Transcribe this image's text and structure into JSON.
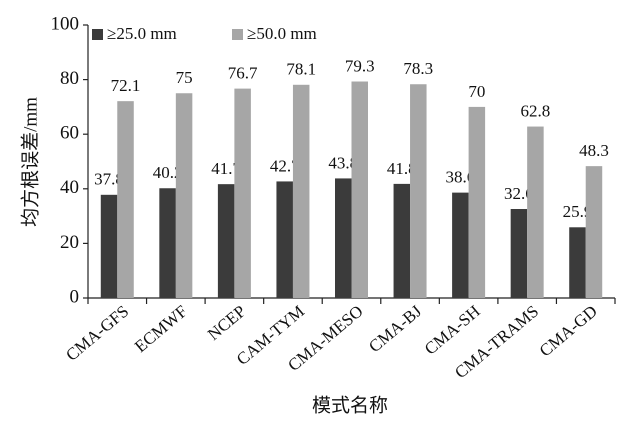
{
  "chart_data": {
    "type": "bar",
    "y_label": "均方根误差/mm",
    "x_label": "模式名称",
    "categories": [
      "CMA-GFS",
      "ECMWF",
      "NCEP",
      "CAM-TYM",
      "CMA-MESO",
      "CMA-BJ",
      "CMA-SH",
      "CMA-TRAMS",
      "CMA-GD"
    ],
    "series": [
      {
        "name": "≥25.0 mm",
        "color": "#3b3b3b",
        "values": [
          37.8,
          40.2,
          41.7,
          42.7,
          43.8,
          41.8,
          38.6,
          32.6,
          25.9
        ]
      },
      {
        "name": "≥50.0 mm",
        "color": "#a6a6a6",
        "values": [
          72.1,
          75,
          76.7,
          78.1,
          79.3,
          78.3,
          70,
          62.8,
          48.3
        ]
      }
    ],
    "ylim": [
      0,
      100
    ],
    "yticks": [
      0,
      20,
      40,
      60,
      80,
      100
    ],
    "legend": "top-left"
  }
}
